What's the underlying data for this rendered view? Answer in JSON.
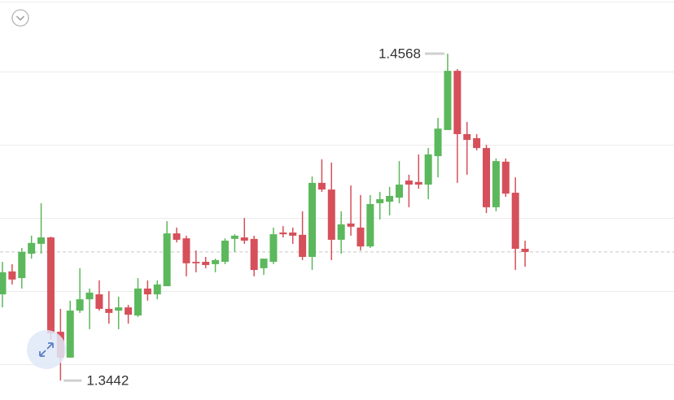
{
  "chart_data": {
    "type": "candlestick",
    "open": [
      1.3739,
      1.3818,
      1.3795,
      1.3879,
      1.3913,
      1.3935,
      1.361,
      1.3521,
      1.3683,
      1.3722,
      1.3739,
      1.3689,
      1.3683,
      1.3694,
      1.3666,
      1.3759,
      1.3739,
      1.3767,
      1.3949,
      1.3932,
      1.3851,
      1.3851,
      1.3843,
      1.3851,
      1.393,
      1.3935,
      1.393,
      1.3829,
      1.3851,
      1.3952,
      1.3952,
      1.3944,
      1.3868,
      1.4123,
      1.41,
      1.3927,
      1.3983,
      1.3969,
      1.3904,
      1.4053,
      1.4058,
      1.4072,
      1.4131,
      1.4126,
      1.4117,
      1.4215,
      1.4305,
      1.4509,
      1.4291,
      1.4277,
      1.4243,
      1.4039,
      1.4196,
      1.4089,
      1.3896
    ],
    "high": [
      1.3851,
      1.3843,
      1.3899,
      1.3941,
      1.4053,
      1.3938,
      1.3689,
      1.3717,
      1.3829,
      1.3759,
      1.3787,
      1.375,
      1.3731,
      1.3703,
      1.3795,
      1.3787,
      1.3787,
      1.3991,
      1.3969,
      1.3941,
      1.389,
      1.3868,
      1.3862,
      1.3932,
      1.3946,
      1.4002,
      1.3941,
      1.3862,
      1.3969,
      1.3974,
      1.3969,
      1.4025,
      1.4145,
      1.4204,
      1.4193,
      1.4025,
      1.4114,
      1.4081,
      1.4081,
      1.4092,
      1.4109,
      1.4198,
      1.4151,
      1.4221,
      1.4243,
      1.4347,
      1.4568,
      1.4515,
      1.4333,
      1.4291,
      1.4254,
      1.4207,
      1.4207,
      1.4142,
      1.3924
    ],
    "low": [
      1.3694,
      1.3773,
      1.3759,
      1.3862,
      1.3879,
      1.3582,
      1.3442,
      1.3521,
      1.3675,
      1.3619,
      1.3683,
      1.3638,
      1.3619,
      1.3638,
      1.3661,
      1.3717,
      1.3722,
      1.3767,
      1.3918,
      1.3801,
      1.3815,
      1.3829,
      1.3815,
      1.3843,
      1.3885,
      1.3913,
      1.3801,
      1.3806,
      1.3843,
      1.3935,
      1.3913,
      1.3857,
      1.3823,
      1.4092,
      1.3857,
      1.3879,
      1.3941,
      1.389,
      1.3899,
      1.3997,
      1.4011,
      1.4053,
      1.4039,
      1.4103,
      1.4067,
      1.4142,
      1.4305,
      1.4123,
      1.4151,
      1.4235,
      1.4019,
      1.4025,
      1.4075,
      1.3823,
      1.3834
    ],
    "close": [
      1.3815,
      1.379,
      1.3885,
      1.3916,
      1.3935,
      1.3605,
      1.3521,
      1.3683,
      1.3722,
      1.3745,
      1.3689,
      1.3675,
      1.3694,
      1.3669,
      1.3759,
      1.3739,
      1.3773,
      1.3949,
      1.3927,
      1.3846,
      1.3846,
      1.384,
      1.3857,
      1.3924,
      1.3941,
      1.3924,
      1.3823,
      1.3862,
      1.3946,
      1.3946,
      1.3941,
      1.3868,
      1.4123,
      1.41,
      1.3927,
      1.398,
      1.3972,
      1.3904,
      1.405,
      1.4067,
      1.4078,
      1.4117,
      1.4117,
      1.4117,
      1.4221,
      1.431,
      1.4509,
      1.4291,
      1.4271,
      1.4243,
      1.4039,
      1.4198,
      1.4086,
      1.3896,
      1.3885
    ],
    "up_color": "#5cb85c",
    "down_color": "#d5505a",
    "ylim": [
      1.3375,
      1.4753
    ]
  }
}
